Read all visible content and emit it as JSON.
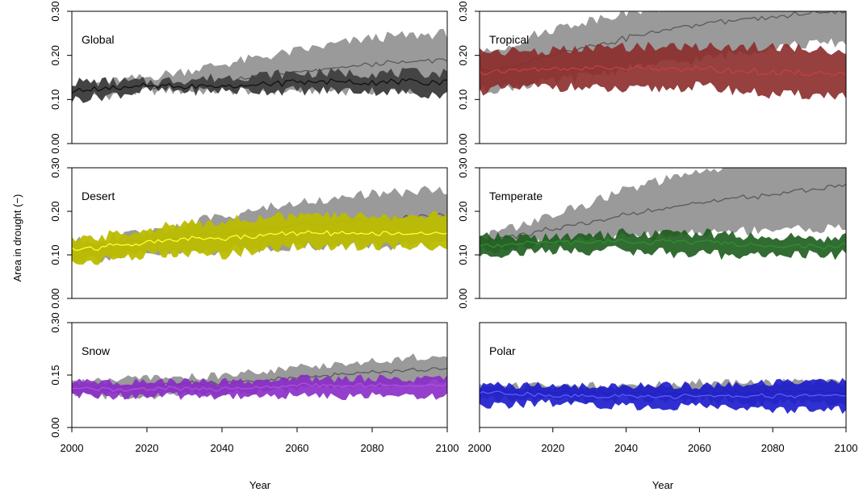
{
  "figure": {
    "ylabel": "Area in drought (−)",
    "xlabel": "Year"
  },
  "colors": {
    "gray_band": "#9a9a9a",
    "gray_line": "#5a5a5a",
    "dark_band": "#444444",
    "global": "#111111",
    "tropical": "#8b2b2b",
    "tropical_line": "#c44040",
    "desert": "#bcbc00",
    "desert_line": "#ffff33",
    "temperate": "#1c5c1c",
    "temperate_line": "#2f8f2f",
    "snow": "#8a2bc8",
    "snow_line": "#b04de0",
    "polar": "#1a1acc",
    "polar_line": "#5a5aff"
  },
  "chart_data": [
    {
      "type": "area",
      "panel": "Global",
      "x_ticks": [
        2000,
        2020,
        2040,
        2060,
        2080,
        2100
      ],
      "xlim": [
        2000,
        2100
      ],
      "ylim": [
        0,
        0.3
      ],
      "y_ticks": [
        "0.00",
        "0.10",
        "0.20",
        "0.30"
      ],
      "series": [
        {
          "x": [
            2000,
            2020,
            2040,
            2060,
            2080,
            2100
          ],
          "low": [
            0.1,
            0.12,
            0.12,
            0.12,
            0.12,
            0.12
          ],
          "mid": [
            0.12,
            0.13,
            0.14,
            0.16,
            0.18,
            0.19
          ],
          "high": [
            0.13,
            0.15,
            0.18,
            0.21,
            0.24,
            0.25
          ]
        },
        {
          "x": [
            2000,
            2020,
            2040,
            2060,
            2080,
            2100
          ],
          "low": [
            0.1,
            0.12,
            0.12,
            0.12,
            0.12,
            0.11
          ],
          "mid": [
            0.12,
            0.13,
            0.13,
            0.14,
            0.14,
            0.14
          ],
          "high": [
            0.14,
            0.14,
            0.15,
            0.16,
            0.16,
            0.16
          ]
        }
      ]
    },
    {
      "type": "area",
      "panel": "Tropical",
      "x_ticks": [
        2000,
        2020,
        2040,
        2060,
        2080,
        2100
      ],
      "xlim": [
        2000,
        2100
      ],
      "ylim": [
        0,
        0.3
      ],
      "y_ticks": [
        "0.00",
        "0.10",
        "0.20",
        "0.30"
      ],
      "series": [
        {
          "x": [
            2000,
            2020,
            2040,
            2060,
            2080,
            2100
          ],
          "low": [
            0.12,
            0.14,
            0.17,
            0.19,
            0.22,
            0.23
          ],
          "mid": [
            0.16,
            0.2,
            0.24,
            0.27,
            0.29,
            0.3
          ],
          "high": [
            0.2,
            0.26,
            0.3,
            0.32,
            0.34,
            0.34
          ]
        },
        {
          "x": [
            2000,
            2020,
            2040,
            2060,
            2080,
            2100
          ],
          "low": [
            0.12,
            0.13,
            0.12,
            0.13,
            0.11,
            0.11
          ],
          "mid": [
            0.16,
            0.17,
            0.17,
            0.17,
            0.16,
            0.16
          ],
          "high": [
            0.21,
            0.21,
            0.22,
            0.22,
            0.22,
            0.21
          ]
        }
      ]
    },
    {
      "type": "area",
      "panel": "Desert",
      "x_ticks": [
        2000,
        2020,
        2040,
        2060,
        2080,
        2100
      ],
      "xlim": [
        2000,
        2100
      ],
      "ylim": [
        0,
        0.3
      ],
      "y_ticks": [
        "0.00",
        "0.10",
        "0.20",
        "0.30"
      ],
      "series": [
        {
          "x": [
            2000,
            2020,
            2040,
            2060,
            2080,
            2100
          ],
          "low": [
            0.09,
            0.1,
            0.11,
            0.12,
            0.12,
            0.12
          ],
          "mid": [
            0.11,
            0.13,
            0.15,
            0.17,
            0.18,
            0.19
          ],
          "high": [
            0.13,
            0.15,
            0.19,
            0.22,
            0.24,
            0.25
          ]
        },
        {
          "x": [
            2000,
            2020,
            2040,
            2060,
            2080,
            2100
          ],
          "low": [
            0.08,
            0.1,
            0.1,
            0.12,
            0.12,
            0.12
          ],
          "mid": [
            0.11,
            0.13,
            0.14,
            0.15,
            0.15,
            0.15
          ],
          "high": [
            0.13,
            0.16,
            0.18,
            0.19,
            0.19,
            0.19
          ]
        }
      ]
    },
    {
      "type": "area",
      "panel": "Temperate",
      "x_ticks": [
        2000,
        2020,
        2040,
        2060,
        2080,
        2100
      ],
      "xlim": [
        2000,
        2100
      ],
      "ylim": [
        0,
        0.3
      ],
      "y_ticks": [
        "0.00",
        "0.10",
        "0.20",
        "0.30"
      ],
      "series": [
        {
          "x": [
            2000,
            2020,
            2040,
            2060,
            2080,
            2100
          ],
          "low": [
            0.11,
            0.13,
            0.14,
            0.15,
            0.16,
            0.16
          ],
          "mid": [
            0.13,
            0.16,
            0.19,
            0.22,
            0.24,
            0.26
          ],
          "high": [
            0.14,
            0.19,
            0.25,
            0.29,
            0.32,
            0.34
          ]
        },
        {
          "x": [
            2000,
            2020,
            2040,
            2060,
            2080,
            2100
          ],
          "low": [
            0.1,
            0.11,
            0.11,
            0.1,
            0.1,
            0.1
          ],
          "mid": [
            0.12,
            0.13,
            0.13,
            0.13,
            0.12,
            0.12
          ],
          "high": [
            0.14,
            0.14,
            0.15,
            0.15,
            0.14,
            0.14
          ]
        }
      ]
    },
    {
      "type": "area",
      "panel": "Snow",
      "x_ticks": [
        2000,
        2020,
        2040,
        2060,
        2080,
        2100
      ],
      "xlim": [
        2000,
        2100
      ],
      "ylim": [
        0,
        0.3
      ],
      "y_ticks": [
        "0.00",
        "0.15",
        "0.30"
      ],
      "series": [
        {
          "x": [
            2000,
            2020,
            2040,
            2060,
            2080,
            2100
          ],
          "low": [
            0.09,
            0.09,
            0.1,
            0.11,
            0.12,
            0.13
          ],
          "mid": [
            0.11,
            0.12,
            0.13,
            0.14,
            0.16,
            0.17
          ],
          "high": [
            0.13,
            0.14,
            0.15,
            0.17,
            0.19,
            0.21
          ]
        },
        {
          "x": [
            2000,
            2020,
            2040,
            2060,
            2080,
            2100
          ],
          "low": [
            0.09,
            0.09,
            0.09,
            0.09,
            0.09,
            0.09
          ],
          "mid": [
            0.11,
            0.11,
            0.11,
            0.12,
            0.12,
            0.12
          ],
          "high": [
            0.13,
            0.13,
            0.13,
            0.14,
            0.14,
            0.14
          ]
        }
      ]
    },
    {
      "type": "area",
      "panel": "Polar",
      "x_ticks": [
        2000,
        2020,
        2040,
        2060,
        2080,
        2100
      ],
      "xlim": [
        2000,
        2100
      ],
      "ylim": [
        0,
        0.3
      ],
      "y_ticks": [],
      "series": [
        {
          "x": [
            2000,
            2020,
            2040,
            2060,
            2080,
            2100
          ],
          "low": [
            0.08,
            0.08,
            0.08,
            0.08,
            0.07,
            0.07
          ],
          "mid": [
            0.1,
            0.1,
            0.1,
            0.1,
            0.1,
            0.1
          ],
          "high": [
            0.12,
            0.12,
            0.12,
            0.13,
            0.13,
            0.13
          ]
        },
        {
          "x": [
            2000,
            2020,
            2040,
            2060,
            2080,
            2100
          ],
          "low": [
            0.06,
            0.07,
            0.06,
            0.06,
            0.05,
            0.05
          ],
          "mid": [
            0.1,
            0.09,
            0.09,
            0.09,
            0.09,
            0.09
          ],
          "high": [
            0.12,
            0.12,
            0.12,
            0.12,
            0.13,
            0.13
          ]
        }
      ]
    }
  ]
}
